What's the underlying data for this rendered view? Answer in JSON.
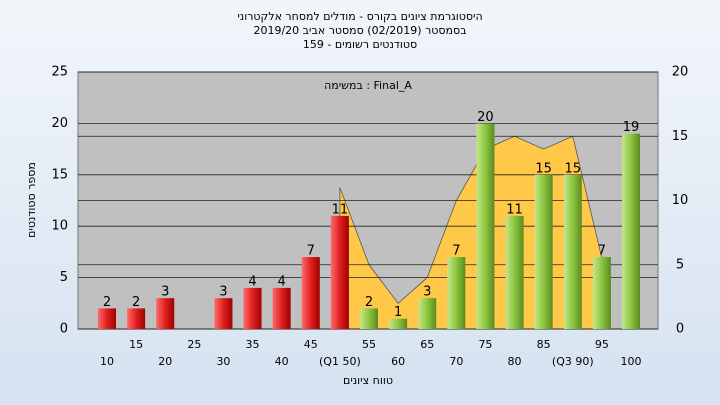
{
  "chart_data": {
    "type": "bar",
    "title": "היסטוגרמת ציונים בקורס - מודלים למסחר אלקטרוני",
    "subtitle": "בסמסטר  (02/2019)  סמסטר אביב 2019/20",
    "subtitle2": "סטודנטים רשומים - 159",
    "annotation": "במשימה : Final_A",
    "x_label": "טווח ציונים",
    "y_label": "מספר סטודנטים",
    "categories": [
      "10",
      "15",
      "20",
      "25",
      "30",
      "35",
      "40",
      "45",
      "(Q1 50)",
      "55",
      "60",
      "65",
      "70",
      "75",
      "80",
      "85",
      "(Q3 90)",
      "95",
      "100"
    ],
    "series": [
      {
        "name": "count",
        "colors": [
          "#e02020",
          "#e02020",
          "#e02020",
          "#e02020",
          "#e02020",
          "#e02020",
          "#e02020",
          "#e02020",
          "#e02020",
          "#8cc63f",
          "#8cc63f",
          "#8cc63f",
          "#8cc63f",
          "#8cc63f",
          "#8cc63f",
          "#8cc63f",
          "#8cc63f",
          "#8cc63f",
          "#8cc63f"
        ],
        "values": [
          2,
          2,
          3,
          0,
          3,
          4,
          4,
          7,
          11,
          2,
          1,
          3,
          7,
          20,
          11,
          15,
          15,
          7,
          19
        ],
        "value_labels": [
          "2",
          "2",
          "3",
          null,
          "3",
          "4",
          "4",
          "7",
          "11",
          "2",
          "1",
          "3",
          "7",
          "20",
          "11",
          "15",
          "15",
          "7",
          "19"
        ]
      },
      {
        "name": "distribution",
        "type": "area",
        "axis": "y2",
        "color": "#ffc848",
        "values": [
          null,
          null,
          null,
          null,
          null,
          null,
          null,
          null,
          11,
          5,
          2,
          4,
          10,
          14,
          15,
          14,
          15,
          5.5,
          null
        ]
      }
    ],
    "ylim": [
      0,
      25
    ],
    "yticks": [
      0,
      5,
      10,
      15,
      20,
      25
    ],
    "y2lim": [
      0,
      20
    ],
    "y2ticks": [
      0,
      5,
      10,
      15,
      20
    ],
    "grid": true
  }
}
